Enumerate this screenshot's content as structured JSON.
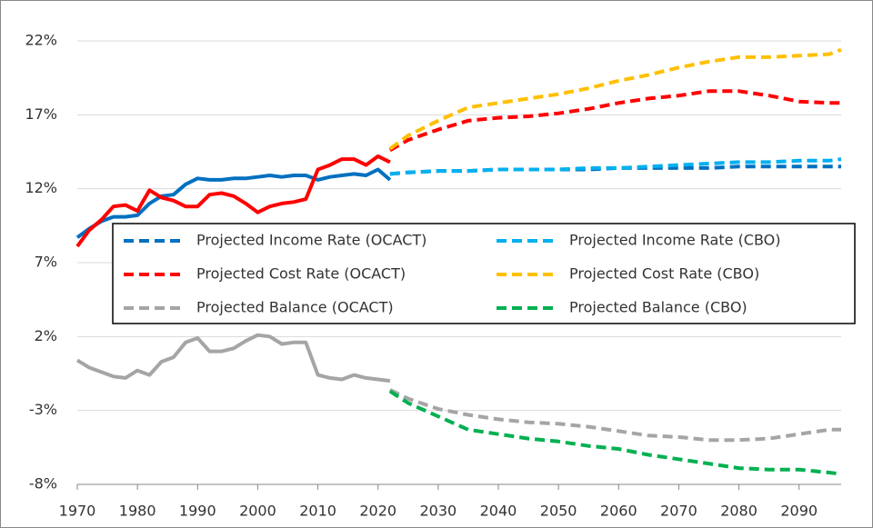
{
  "chart_data": {
    "type": "line",
    "xlim": [
      1970,
      2097
    ],
    "xticks": [
      1970,
      1980,
      1990,
      2000,
      2010,
      2020,
      2030,
      2040,
      2050,
      2060,
      2070,
      2080,
      2090
    ],
    "ylim": [
      -8,
      22
    ],
    "yticks": [
      {
        "value": -8,
        "label": "-8%"
      },
      {
        "value": -3,
        "label": "-3%"
      },
      {
        "value": 2,
        "label": "2%"
      },
      {
        "value": 7,
        "label": "7%"
      },
      {
        "value": 12,
        "label": "12%"
      },
      {
        "value": 17,
        "label": "17%"
      },
      {
        "value": 22,
        "label": "22%"
      }
    ],
    "grid": true,
    "legend_position": "center",
    "series": [
      {
        "name": "Projected Income Rate (OCACT)",
        "color": "#0070c0",
        "style": "dashed",
        "x": [
          2022,
          2025,
          2030,
          2035,
          2040,
          2045,
          2050,
          2055,
          2060,
          2065,
          2070,
          2075,
          2080,
          2085,
          2090,
          2095,
          2097
        ],
        "values": [
          13.0,
          13.1,
          13.2,
          13.2,
          13.3,
          13.3,
          13.3,
          13.3,
          13.4,
          13.4,
          13.4,
          13.4,
          13.5,
          13.5,
          13.5,
          13.5,
          13.5
        ]
      },
      {
        "name": "Projected Income Rate (CBO)",
        "color": "#00b0f0",
        "style": "dashed",
        "x": [
          2022,
          2025,
          2030,
          2035,
          2040,
          2045,
          2050,
          2055,
          2060,
          2065,
          2070,
          2075,
          2080,
          2085,
          2090,
          2095,
          2097
        ],
        "values": [
          13.0,
          13.1,
          13.2,
          13.2,
          13.3,
          13.3,
          13.3,
          13.4,
          13.4,
          13.5,
          13.6,
          13.7,
          13.8,
          13.8,
          13.9,
          13.9,
          14.0
        ]
      },
      {
        "name": "Projected Cost Rate (OCACT)",
        "color": "#ff0000",
        "style": "dashed",
        "x": [
          2022,
          2025,
          2030,
          2035,
          2040,
          2045,
          2050,
          2055,
          2060,
          2065,
          2070,
          2075,
          2080,
          2085,
          2090,
          2095,
          2097
        ],
        "values": [
          14.6,
          15.3,
          16.0,
          16.6,
          16.8,
          16.9,
          17.1,
          17.4,
          17.8,
          18.1,
          18.3,
          18.6,
          18.6,
          18.3,
          17.9,
          17.8,
          17.8
        ]
      },
      {
        "name": "Projected Cost Rate (CBO)",
        "color": "#ffc000",
        "style": "dashed",
        "x": [
          2022,
          2025,
          2030,
          2035,
          2040,
          2045,
          2050,
          2055,
          2060,
          2065,
          2070,
          2075,
          2080,
          2085,
          2090,
          2095,
          2097
        ],
        "values": [
          14.7,
          15.6,
          16.6,
          17.5,
          17.8,
          18.1,
          18.4,
          18.8,
          19.3,
          19.7,
          20.2,
          20.6,
          20.9,
          20.9,
          21.0,
          21.1,
          21.4
        ]
      },
      {
        "name": "Projected Balance (OCACT)",
        "color": "#a5a5a5",
        "style": "dashed",
        "x": [
          2022,
          2025,
          2030,
          2035,
          2040,
          2045,
          2050,
          2055,
          2060,
          2065,
          2070,
          2075,
          2080,
          2085,
          2090,
          2095,
          2097
        ],
        "values": [
          -1.6,
          -2.2,
          -2.9,
          -3.3,
          -3.6,
          -3.8,
          -3.9,
          -4.1,
          -4.4,
          -4.7,
          -4.8,
          -5.0,
          -5.0,
          -4.9,
          -4.6,
          -4.3,
          -4.3
        ]
      },
      {
        "name": "Projected Balance (CBO)",
        "color": "#00b050",
        "style": "dashed",
        "x": [
          2022,
          2025,
          2030,
          2035,
          2040,
          2045,
          2050,
          2055,
          2060,
          2065,
          2070,
          2075,
          2080,
          2085,
          2090,
          2095,
          2097
        ],
        "values": [
          -1.7,
          -2.5,
          -3.4,
          -4.3,
          -4.6,
          -4.9,
          -5.1,
          -5.4,
          -5.6,
          -6.0,
          -6.3,
          -6.6,
          -6.9,
          -7.0,
          -7.0,
          -7.2,
          -7.3
        ]
      },
      {
        "color": "#0070c0",
        "style": "solid",
        "x": [
          1970,
          1972,
          1974,
          1976,
          1978,
          1980,
          1982,
          1984,
          1986,
          1988,
          1990,
          1992,
          1994,
          1996,
          1998,
          2000,
          2002,
          2004,
          2006,
          2008,
          2010,
          2012,
          2014,
          2016,
          2018,
          2020,
          2022
        ],
        "values": [
          8.7,
          9.3,
          9.8,
          10.1,
          10.1,
          10.2,
          11.0,
          11.5,
          11.6,
          12.3,
          12.7,
          12.6,
          12.6,
          12.7,
          12.7,
          12.8,
          12.9,
          12.8,
          12.9,
          12.9,
          12.6,
          12.8,
          12.9,
          13.0,
          12.9,
          13.3,
          12.6
        ]
      },
      {
        "color": "#ff0000",
        "style": "solid",
        "x": [
          1970,
          1972,
          1974,
          1976,
          1978,
          1980,
          1982,
          1984,
          1986,
          1988,
          1990,
          1992,
          1994,
          1996,
          1998,
          2000,
          2002,
          2004,
          2006,
          2008,
          2010,
          2012,
          2014,
          2016,
          2018,
          2020,
          2022
        ],
        "values": [
          8.1,
          9.2,
          9.9,
          10.8,
          10.9,
          10.5,
          11.9,
          11.4,
          11.2,
          10.8,
          10.8,
          11.6,
          11.7,
          11.5,
          11.0,
          10.4,
          10.8,
          11.0,
          11.1,
          11.3,
          13.3,
          13.6,
          14.0,
          14.0,
          13.6,
          14.2,
          13.8
        ]
      },
      {
        "color": "#a5a5a5",
        "style": "solid",
        "x": [
          1970,
          1972,
          1974,
          1976,
          1978,
          1980,
          1982,
          1984,
          1986,
          1988,
          1990,
          1992,
          1994,
          1996,
          1998,
          2000,
          2002,
          2004,
          2006,
          2008,
          2010,
          2012,
          2014,
          2016,
          2018,
          2020,
          2022
        ],
        "values": [
          0.4,
          -0.1,
          -0.4,
          -0.7,
          -0.8,
          -0.3,
          -0.6,
          0.3,
          0.6,
          1.6,
          1.9,
          1.0,
          1.0,
          1.2,
          1.7,
          2.1,
          2.0,
          1.5,
          1.6,
          1.6,
          -0.6,
          -0.8,
          -0.9,
          -0.6,
          -0.8,
          -0.9,
          -1.0
        ]
      }
    ]
  }
}
